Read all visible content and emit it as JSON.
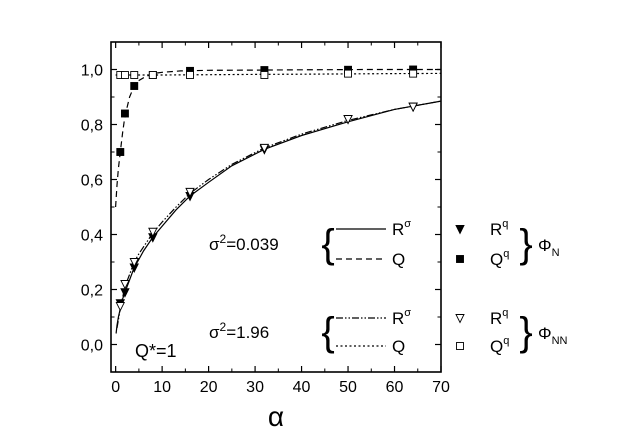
{
  "chart_data": {
    "type": "scatter",
    "title": "",
    "xlabel": "α",
    "ylabel": "",
    "xlim": [
      -1,
      70
    ],
    "ylim": [
      -0.1,
      1.1
    ],
    "x_ticks": [
      0,
      10,
      20,
      30,
      40,
      50,
      60,
      70
    ],
    "x_tick_labels": [
      "0",
      "10",
      "20",
      "30",
      "40",
      "50",
      "60",
      "70"
    ],
    "y_ticks": [
      0.0,
      0.2,
      0.4,
      0.6,
      0.8,
      1.0
    ],
    "y_tick_labels": [
      "0,0",
      "0,2",
      "0,4",
      "0,6",
      "0,8",
      "1,0"
    ],
    "grid": false,
    "annotation": "Q*=1",
    "series": [
      {
        "name": "Rq",
        "group": "σ2=0.039",
        "marker": "filled-down-triangle",
        "x": [
          1,
          2,
          4,
          8,
          16,
          32,
          50,
          64
        ],
        "y": [
          0.15,
          0.19,
          0.28,
          0.39,
          0.54,
          0.71,
          0.82,
          0.865
        ]
      },
      {
        "name": "Qq",
        "group": "σ2=0.039",
        "marker": "filled-square",
        "x": [
          1,
          2,
          4,
          8,
          16,
          32,
          50,
          64
        ],
        "y": [
          0.7,
          0.84,
          0.94,
          0.98,
          0.995,
          0.998,
          0.999,
          1.0
        ]
      },
      {
        "name": "Rq",
        "group": "σ2=1.96",
        "marker": "open-down-triangle",
        "x": [
          1,
          2,
          4,
          8,
          16,
          32,
          50,
          64
        ],
        "y": [
          0.14,
          0.22,
          0.3,
          0.41,
          0.555,
          0.715,
          0.82,
          0.865
        ]
      },
      {
        "name": "Qq",
        "group": "σ2=1.96",
        "marker": "open-square",
        "x": [
          1,
          2,
          4,
          8,
          16,
          32,
          50,
          64
        ],
        "y": [
          0.98,
          0.98,
          0.98,
          0.98,
          0.98,
          0.98,
          0.985,
          0.985
        ]
      },
      {
        "name": "Rσ",
        "group": "σ2=0.039",
        "line": "solid",
        "x": [
          0.1,
          0.3,
          0.6,
          1,
          1.5,
          2,
          3,
          4,
          5,
          6,
          8,
          10,
          13,
          16,
          20,
          25,
          32,
          40,
          50,
          60,
          70
        ],
        "y": [
          0.04,
          0.07,
          0.1,
          0.13,
          0.165,
          0.19,
          0.235,
          0.28,
          0.31,
          0.34,
          0.39,
          0.43,
          0.49,
          0.54,
          0.59,
          0.65,
          0.71,
          0.76,
          0.81,
          0.855,
          0.885
        ]
      },
      {
        "name": "Q",
        "group": "σ2=0.039",
        "line": "dashed",
        "x": [
          0,
          0.3,
          0.6,
          1,
          1.5,
          2,
          3,
          4,
          5,
          6,
          8,
          10,
          14,
          20,
          30,
          40,
          55,
          70
        ],
        "y": [
          0.5,
          0.58,
          0.64,
          0.7,
          0.77,
          0.83,
          0.9,
          0.94,
          0.96,
          0.97,
          0.985,
          0.99,
          0.995,
          0.997,
          0.998,
          0.999,
          1.0,
          1.0
        ]
      },
      {
        "name": "Rσ",
        "group": "σ2=1.96",
        "line": "dash-dot-dot",
        "x": [
          0.3,
          0.6,
          1,
          1.5,
          2,
          3,
          4,
          5,
          6,
          8,
          10,
          13,
          16,
          20,
          25,
          32,
          40,
          50,
          60,
          70
        ],
        "y": [
          0.06,
          0.09,
          0.13,
          0.17,
          0.21,
          0.255,
          0.3,
          0.33,
          0.355,
          0.405,
          0.445,
          0.5,
          0.55,
          0.6,
          0.655,
          0.715,
          0.765,
          0.815,
          0.855,
          0.885
        ]
      },
      {
        "name": "Q",
        "group": "σ2=1.96",
        "line": "dotted",
        "x": [
          0,
          1,
          2,
          3,
          4,
          6,
          8,
          10,
          20,
          30,
          40,
          50,
          60,
          70
        ],
        "y": [
          0.98,
          0.98,
          0.98,
          0.98,
          0.98,
          0.98,
          0.98,
          0.98,
          0.981,
          0.982,
          0.983,
          0.984,
          0.985,
          0.986
        ]
      }
    ],
    "legend": {
      "groups": [
        {
          "sigma_label": "σ",
          "sigma_exp": "2",
          "sigma_value": "=0.039",
          "line_labels": [
            {
              "text": "R",
              "sup": "σ",
              "line": "solid"
            },
            {
              "text": "Q",
              "sup": "",
              "line": "dashed"
            }
          ],
          "marker_labels": [
            {
              "text": "R",
              "sup": "q",
              "marker": "filled-down-triangle"
            },
            {
              "text": "Q",
              "sup": "q",
              "marker": "filled-square"
            }
          ],
          "phi_symbol": "Φ",
          "phi_sub": "N"
        },
        {
          "sigma_label": "σ",
          "sigma_exp": "2",
          "sigma_value": "=1.96",
          "line_labels": [
            {
              "text": "R",
              "sup": "σ",
              "line": "dash-dot-dot"
            },
            {
              "text": "Q",
              "sup": "",
              "line": "dotted"
            }
          ],
          "marker_labels": [
            {
              "text": "R",
              "sup": "q",
              "marker": "open-down-triangle"
            },
            {
              "text": "Q",
              "sup": "q",
              "marker": "open-square"
            }
          ],
          "phi_symbol": "Φ",
          "phi_sub": "NN"
        }
      ]
    }
  }
}
